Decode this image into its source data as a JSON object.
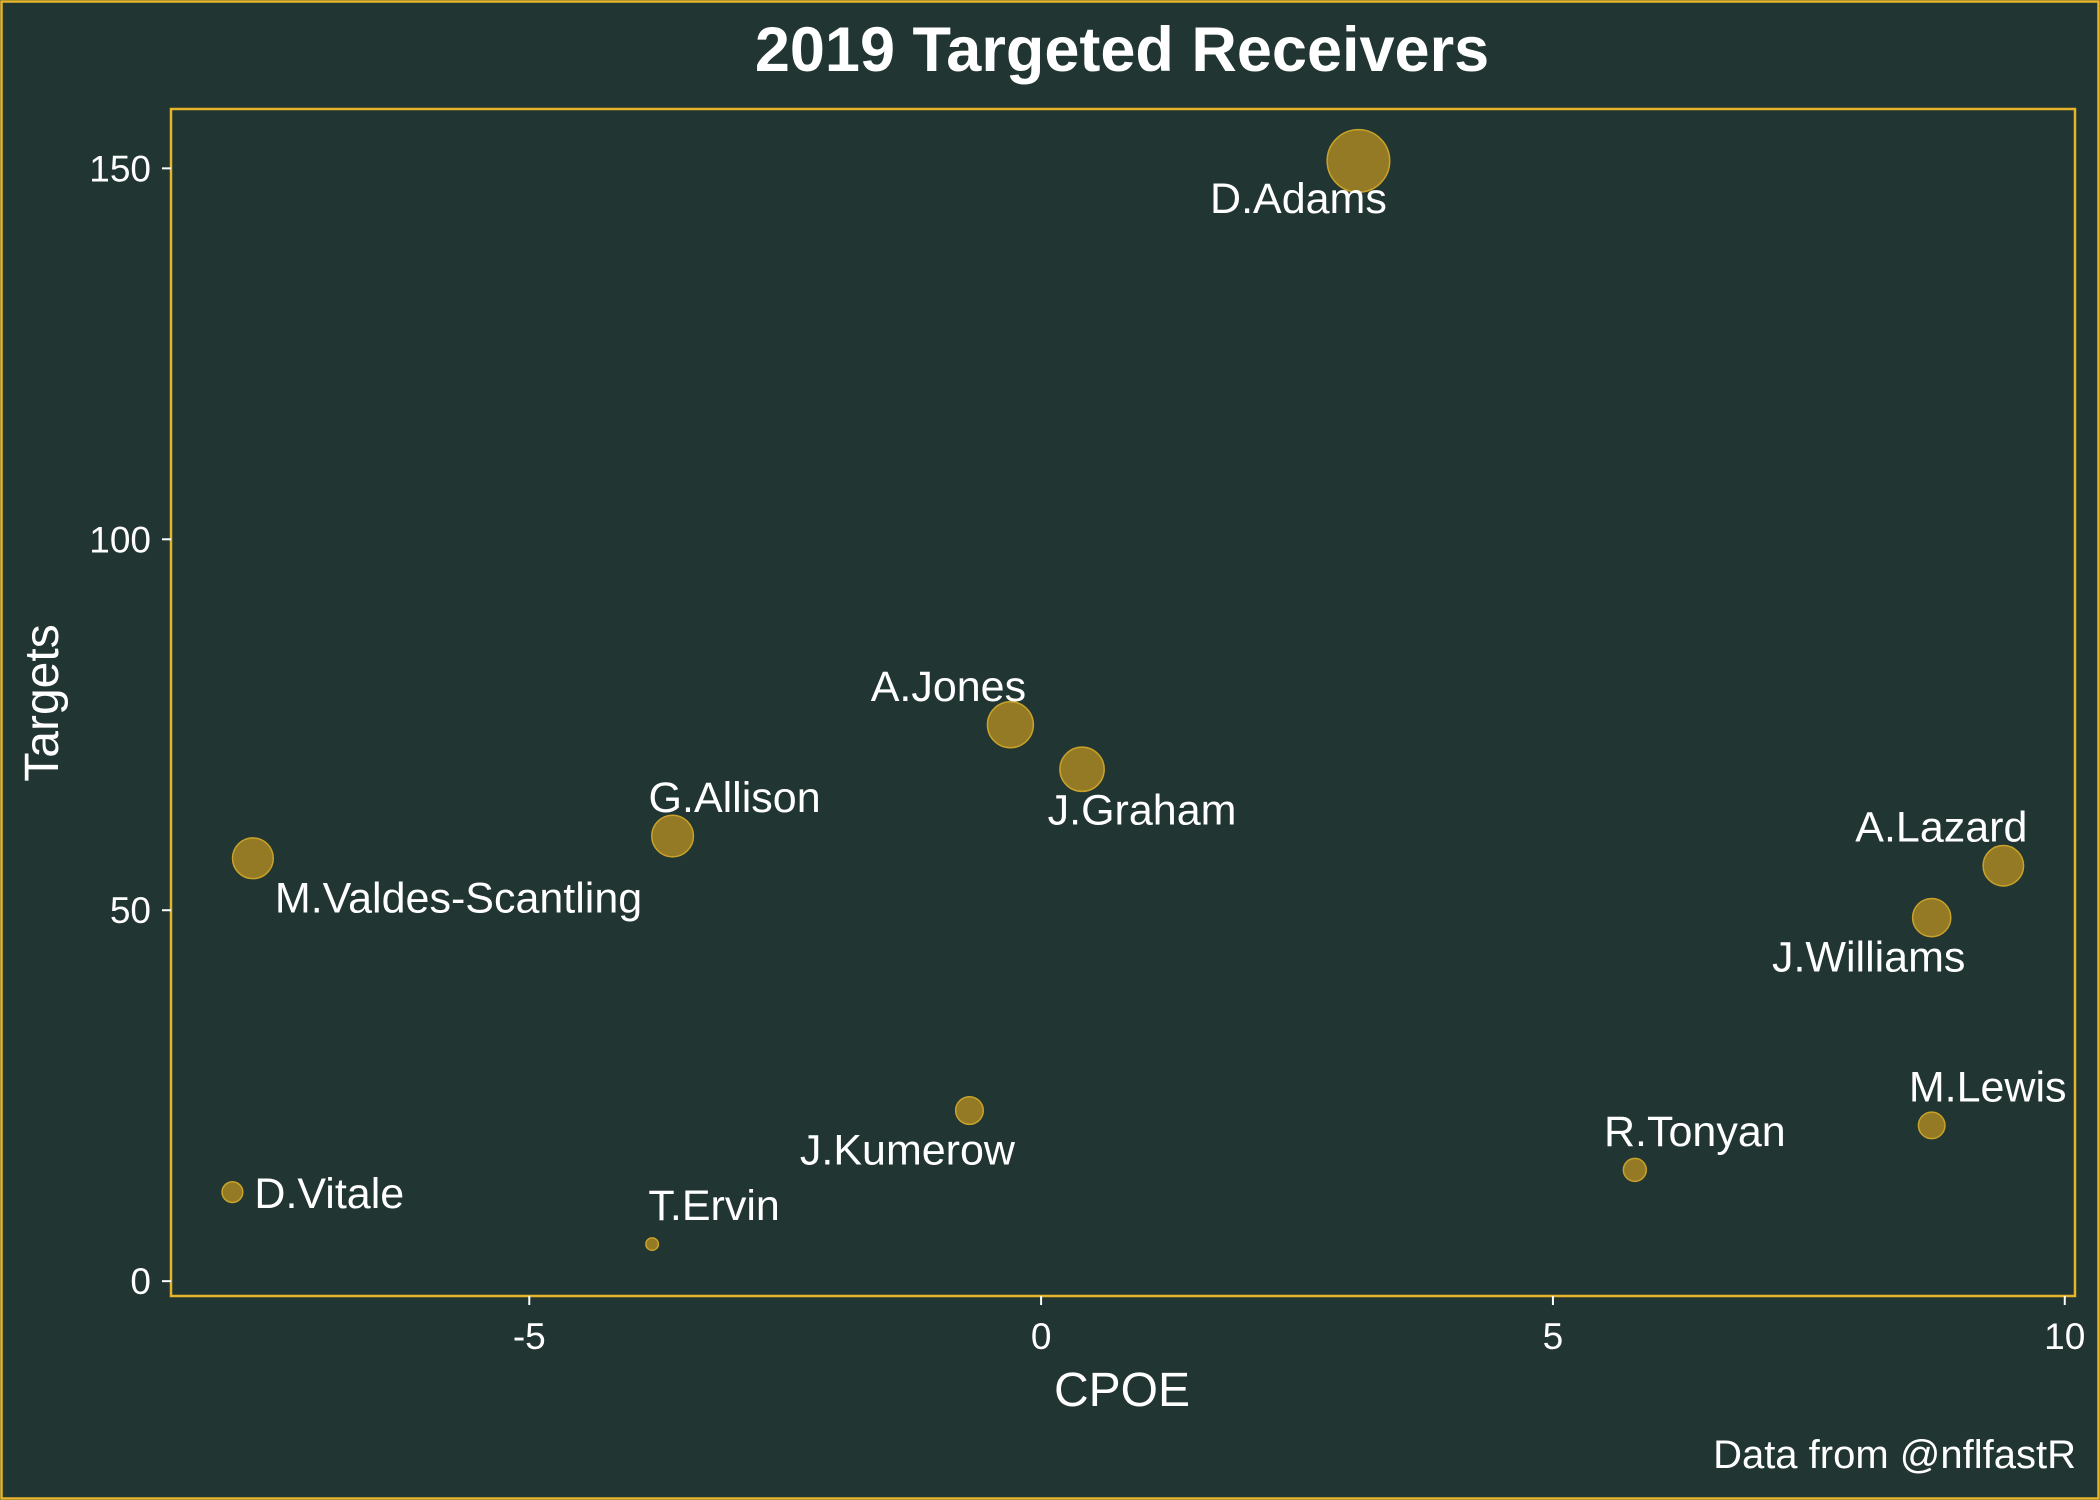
{
  "colors": {
    "background": "#213532",
    "border": "#e6b42b",
    "point_fill": "#a18223",
    "text": "#ffffff"
  },
  "chart_data": {
    "type": "scatter",
    "title": "2019 Targeted Receivers",
    "xlabel": "CPOE",
    "ylabel": "Targets",
    "caption": "Data from @nflfastR",
    "xlim": [
      -8.5,
      10.1
    ],
    "ylim": [
      -2,
      158
    ],
    "xticks": [
      "-5",
      "0",
      "5",
      "10"
    ],
    "yticks": [
      "0",
      "50",
      "100",
      "150"
    ],
    "grid": false,
    "legend": "none",
    "size_encodes": "Targets",
    "points": [
      {
        "name": "D.Adams",
        "x": 3.1,
        "y": 151
      },
      {
        "name": "A.Jones",
        "x": -0.3,
        "y": 75
      },
      {
        "name": "J.Graham",
        "x": 0.4,
        "y": 69
      },
      {
        "name": "G.Allison",
        "x": -3.6,
        "y": 60
      },
      {
        "name": "M.Valdes-Scantling",
        "x": -7.7,
        "y": 57
      },
      {
        "name": "A.Lazard",
        "x": 9.4,
        "y": 56
      },
      {
        "name": "J.Williams",
        "x": 8.7,
        "y": 49
      },
      {
        "name": "J.Kumerow",
        "x": -0.7,
        "y": 23
      },
      {
        "name": "M.Lewis",
        "x": 8.7,
        "y": 21
      },
      {
        "name": "R.Tonyan",
        "x": 5.8,
        "y": 15
      },
      {
        "name": "D.Vitale",
        "x": -7.9,
        "y": 12
      },
      {
        "name": "T.Ervin",
        "x": -3.8,
        "y": 5
      }
    ]
  }
}
